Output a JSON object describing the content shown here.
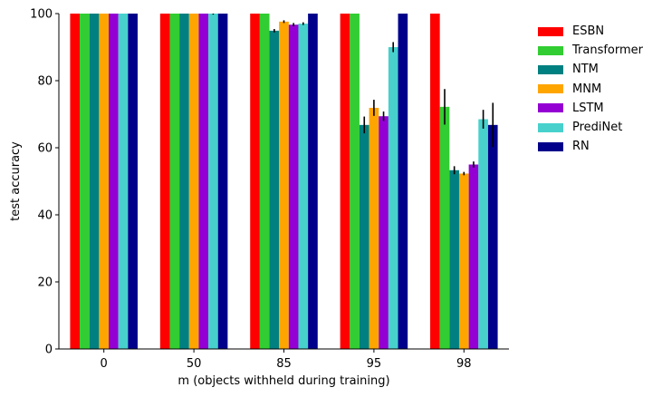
{
  "chart_data": {
    "type": "bar",
    "title": "",
    "xlabel": "m (objects withheld during training)",
    "ylabel": "test accuracy",
    "ylim": [
      0,
      100
    ],
    "yticks": [
      0,
      20,
      40,
      60,
      80,
      100
    ],
    "categories": [
      "0",
      "50",
      "85",
      "95",
      "98"
    ],
    "legend_position": "right",
    "series": [
      {
        "name": "ESBN",
        "color": "#ff0000",
        "values": [
          100,
          100,
          100,
          100,
          100
        ],
        "errors": [
          0,
          0,
          0,
          0,
          0
        ]
      },
      {
        "name": "Transformer",
        "color": "#32cd32",
        "values": [
          100,
          100,
          100,
          100,
          72.2
        ],
        "errors": [
          0,
          0,
          0,
          0,
          5.3
        ]
      },
      {
        "name": "NTM",
        "color": "#008080",
        "values": [
          100,
          100,
          94.9,
          66.8,
          53.3
        ],
        "errors": [
          0,
          0,
          0.5,
          2.5,
          1.2
        ]
      },
      {
        "name": "MNM",
        "color": "#ffa500",
        "values": [
          100,
          100,
          97.6,
          71.9,
          52.3
        ],
        "errors": [
          0,
          0,
          0.4,
          2.4,
          0.5
        ]
      },
      {
        "name": "LSTM",
        "color": "#9400d3",
        "values": [
          100,
          100,
          96.7,
          69.4,
          55.0
        ],
        "errors": [
          0,
          0,
          0.5,
          1.4,
          0.9
        ]
      },
      {
        "name": "PrediNet",
        "color": "#48d1cc",
        "values": [
          100,
          100,
          97.0,
          90.0,
          68.5
        ],
        "errors": [
          0,
          0.3,
          0.4,
          1.5,
          2.8
        ]
      },
      {
        "name": "RN",
        "color": "#00008b",
        "values": [
          100,
          100,
          100,
          100,
          66.8
        ],
        "errors": [
          0,
          0,
          0,
          0,
          6.6
        ]
      }
    ]
  }
}
